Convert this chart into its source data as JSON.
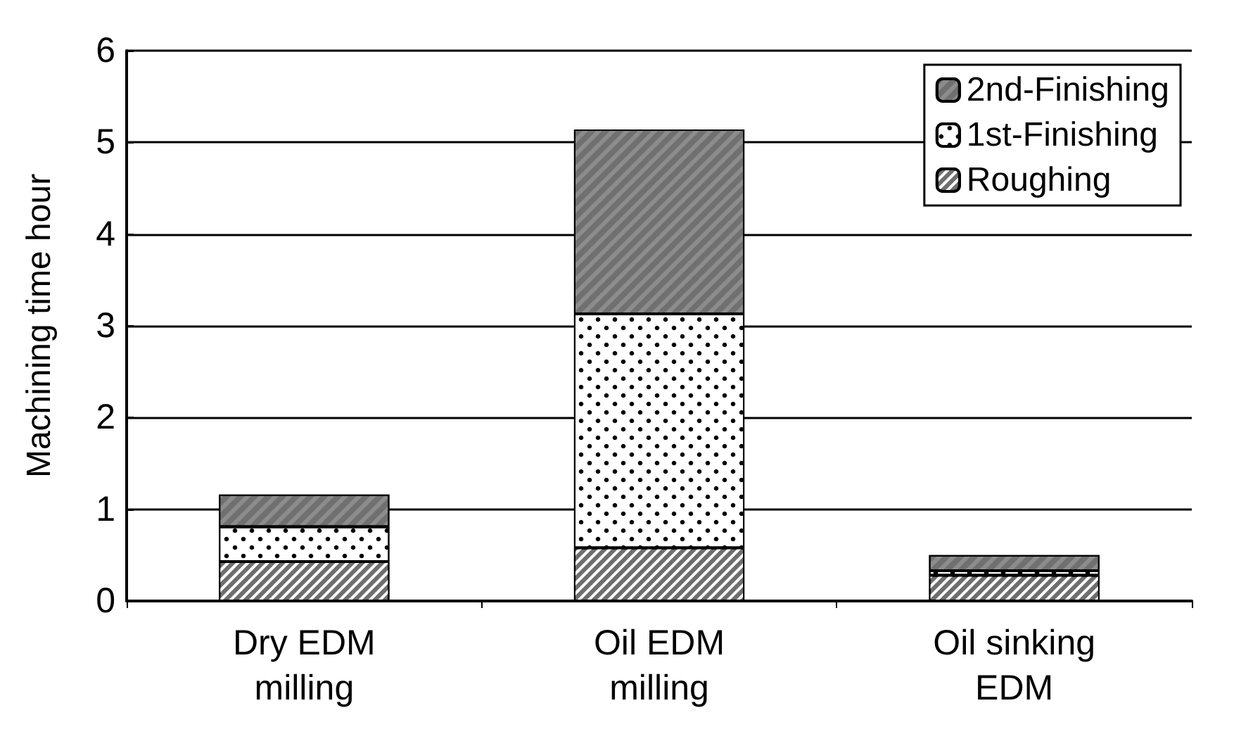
{
  "chart_data": {
    "type": "bar",
    "stacked": true,
    "ylabel": "Machining time hour",
    "categories": [
      "Dry EDM\nmilling",
      "Oil EDM\nmilling",
      "Oil sinking\nEDM"
    ],
    "series": [
      {
        "name": "Roughing",
        "color": "#6e6e6e",
        "values": [
          0.43,
          0.58,
          0.28
        ]
      },
      {
        "name": "1st-Finishing",
        "color": "#ffffff",
        "values": [
          0.38,
          2.55,
          0.05
        ]
      },
      {
        "name": "2nd-Finishing",
        "color": "#8c8c8c",
        "values": [
          0.35,
          2.01,
          0.17
        ]
      }
    ],
    "ylim": [
      0,
      6
    ],
    "yticks": [
      0,
      1,
      2,
      3,
      4,
      5,
      6
    ],
    "grid": "y",
    "legend": "top right"
  }
}
